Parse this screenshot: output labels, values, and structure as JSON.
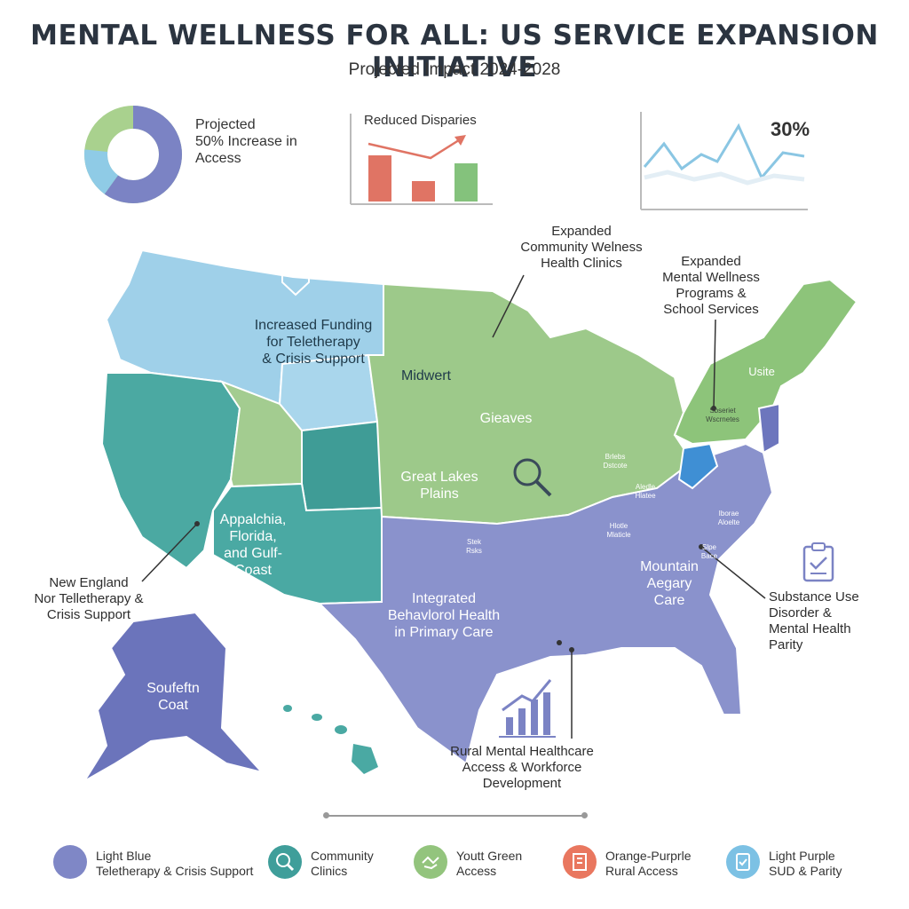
{
  "header": {
    "title": "MENTAL WELLNESS FOR ALL: US SERVICE  EXPANSION INITIATIVE",
    "subtitle": "Projected Impact 2024-2028"
  },
  "kpis": {
    "donut": {
      "line1": "Projected",
      "line2": "50% Increase in",
      "line3": "Access"
    },
    "bars": {
      "label": "Reduced Disparies"
    },
    "line": {
      "value": "30%"
    }
  },
  "callouts": {
    "community_clinics": [
      "Expanded",
      "Community Welness",
      "Health Clinics"
    ],
    "school_services": [
      "Expanded",
      "Mental Wellness",
      "Programs &",
      "School Services"
    ],
    "new_england": [
      "New England",
      "Nor Telletherapy &",
      "Crisis Support"
    ],
    "substance_use": [
      "Substance Use",
      "Disorder &",
      "Mental Health",
      "Parity"
    ],
    "rural": [
      "Rural Mental Healthcare",
      "Access & Workforce",
      "Development"
    ]
  },
  "map_labels": {
    "teletherapy": [
      "Increased Funding",
      "for Teletherapy",
      "& Crisis Support"
    ],
    "midwest": "Midwert",
    "gieaves": "Gieaves",
    "great_lakes": [
      "Great Lakes",
      "Plains"
    ],
    "appalachia": [
      "Appalchia,",
      "Florida,",
      "and Gulf-",
      "Coast"
    ],
    "integrated": [
      "Integrated",
      "Behavlorol Health",
      "in Primary Care"
    ],
    "mountain": [
      "Mountain",
      "Aegary",
      "Care"
    ],
    "southern": [
      "Soufeftn",
      "Coat"
    ],
    "usite": "Usite",
    "small_ne": [
      "Sbseriet",
      "Wscrnetes"
    ],
    "small_tx": [
      "Stek",
      "Rsks"
    ],
    "small_ar": [
      "Hlotle",
      "Mlaticle"
    ],
    "small_carolina": [
      "Iborae",
      "Aloelte"
    ],
    "small_nc": [
      "Slpe",
      "Bace"
    ],
    "small_oh1": [
      "Brlebs",
      "Dstcote"
    ],
    "small_oh2": [
      "Aledle",
      "Hlatee"
    ]
  },
  "legend": [
    {
      "line1": "Light Blue",
      "line2": "Teletherapy & Crisis Support",
      "color": "#7f87c6",
      "icon": "circle"
    },
    {
      "line1": "Community",
      "line2": "Clinics",
      "color": "#3f9e9a",
      "icon": "search-icon"
    },
    {
      "line1": "Youtt Green",
      "line2": "Access",
      "color": "#93c47d",
      "icon": "handshake-icon"
    },
    {
      "line1": "Orange-Purprle",
      "line2": "Rural Access",
      "color": "#e9775f",
      "icon": "building-icon"
    },
    {
      "line1": "Light Purple",
      "line2": "SUD & Parity",
      "color": "#7cc1e4",
      "icon": "clipboard-icon"
    }
  ],
  "colors": {
    "light_blue": "#9cd0e8",
    "teal": "#4aa8a3",
    "green": "#9dc98a",
    "purple": "#8a92cc",
    "dark_purple": "#6d76bd",
    "bar_red": "#e07464",
    "bar_green": "#84c27c"
  }
}
